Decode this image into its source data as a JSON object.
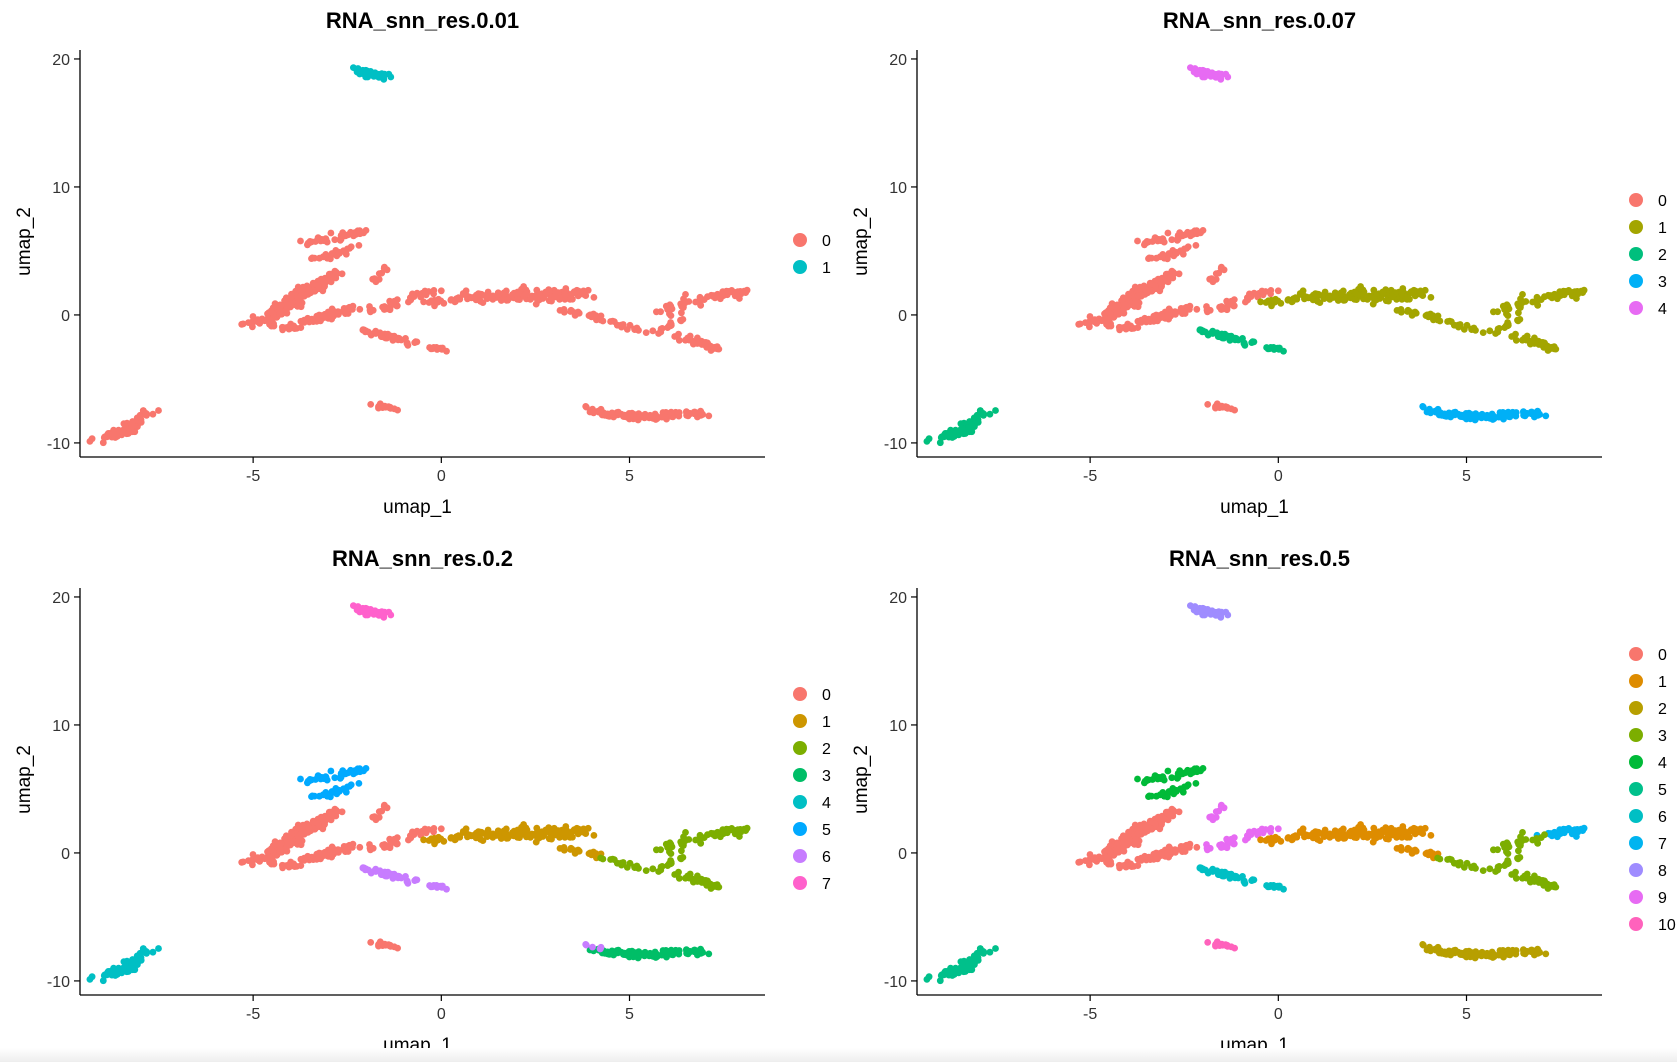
{
  "chart_data": [
    {
      "type": "scatter",
      "title": "RNA_snn_res.0.01",
      "xlabel": "umap_1",
      "ylabel": "umap_2",
      "xlim": [
        -9.6,
        8.6
      ],
      "ylim": [
        -11.1,
        20.7
      ],
      "xticks": [
        -5,
        0,
        5
      ],
      "yticks": [
        -10,
        0,
        10,
        20
      ],
      "legend_position": "right",
      "assignment": {
        "A1": "0",
        "A2": "0",
        "A3": "0",
        "B1": "0",
        "B2": "0",
        "C": "0",
        "D": "0",
        "E": "0",
        "G1": "0",
        "G2": "0",
        "H": "0",
        "I1": "0",
        "I2": "0",
        "I3": "0",
        "J1": "0",
        "J2": "0",
        "J3": "0",
        "K1": "0",
        "K2": "0",
        "L1": "0",
        "L2": "0",
        "M": "0",
        "N": "1",
        "O": "0"
      },
      "legend": [
        {
          "label": "0",
          "color": "#F8766D"
        },
        {
          "label": "1",
          "color": "#00BFC4"
        }
      ]
    },
    {
      "type": "scatter",
      "title": "RNA_snn_res.0.07",
      "xlabel": "umap_1",
      "ylabel": "umap_2",
      "xlim": [
        -9.6,
        8.6
      ],
      "ylim": [
        -11.1,
        20.7
      ],
      "xticks": [
        -5,
        0,
        5
      ],
      "yticks": [
        -10,
        0,
        10,
        20
      ],
      "legend_position": "right",
      "assignment": {
        "A1": "0",
        "A2": "0",
        "A3": "0",
        "B1": "0",
        "B2": "0",
        "C": "0",
        "D": "0",
        "E": "2",
        "G1": "1",
        "G2": "1",
        "H": "1",
        "I1": "1",
        "I2": "1",
        "I3": "1",
        "J1": "1",
        "J2": "1",
        "J3": "1",
        "K1": "3",
        "K2": "3",
        "L1": "2",
        "L2": "2",
        "M": "0",
        "N": "4",
        "O": "3"
      },
      "legend": [
        {
          "label": "0",
          "color": "#F8766D"
        },
        {
          "label": "1",
          "color": "#A3A500"
        },
        {
          "label": "2",
          "color": "#00BF7D"
        },
        {
          "label": "3",
          "color": "#00B0F6"
        },
        {
          "label": "4",
          "color": "#E76BF3"
        }
      ]
    },
    {
      "type": "scatter",
      "title": "RNA_snn_res.0.2",
      "xlabel": "umap_1",
      "ylabel": "umap_2",
      "xlim": [
        -9.6,
        8.6
      ],
      "ylim": [
        -11.1,
        20.7
      ],
      "xticks": [
        -5,
        0,
        5
      ],
      "yticks": [
        -10,
        0,
        10,
        20
      ],
      "legend_position": "right",
      "assignment": {
        "A1": "0",
        "A2": "0",
        "A3": "0",
        "B1": "5",
        "B2": "5",
        "C": "0",
        "D": "0",
        "E": "6",
        "G1": "1",
        "G2": "1",
        "H": "1",
        "I1": "1",
        "I2": "2",
        "I3": "2",
        "J1": "2",
        "J2": "2",
        "J3": "2",
        "K1": "3",
        "K2": "3",
        "L1": "4",
        "L2": "4",
        "M": "0",
        "N": "7",
        "O": "6"
      },
      "legend": [
        {
          "label": "0",
          "color": "#F8766D"
        },
        {
          "label": "1",
          "color": "#CD9600"
        },
        {
          "label": "2",
          "color": "#7CAE00"
        },
        {
          "label": "3",
          "color": "#00BE67"
        },
        {
          "label": "4",
          "color": "#00BFC4"
        },
        {
          "label": "5",
          "color": "#00A9FF"
        },
        {
          "label": "6",
          "color": "#C77CFF"
        },
        {
          "label": "7",
          "color": "#FF61CC"
        }
      ]
    },
    {
      "type": "scatter",
      "title": "RNA_snn_res.0.5",
      "xlabel": "umap_1",
      "ylabel": "umap_2",
      "xlim": [
        -9.6,
        8.6
      ],
      "ylim": [
        -11.1,
        20.7
      ],
      "xticks": [
        -5,
        0,
        5
      ],
      "yticks": [
        -10,
        0,
        10,
        20
      ],
      "legend_position": "right",
      "assignment": {
        "A1": "0",
        "A2": "0",
        "A3": "0",
        "B1": "4",
        "B2": "4",
        "C": "9",
        "D": "9",
        "E": "6",
        "G1": "1",
        "G2": "1",
        "H": "1",
        "I1": "1",
        "I2": "3",
        "I3": "3",
        "J1": "7",
        "J2": "3",
        "J3": "3",
        "K1": "2",
        "K2": "2",
        "L1": "5",
        "L2": "5",
        "M": "10",
        "N": "8",
        "O": "2"
      },
      "legend": [
        {
          "label": "0",
          "color": "#F8766D"
        },
        {
          "label": "1",
          "color": "#DE8C00"
        },
        {
          "label": "2",
          "color": "#B79F00"
        },
        {
          "label": "3",
          "color": "#7CAE00"
        },
        {
          "label": "4",
          "color": "#00BA38"
        },
        {
          "label": "5",
          "color": "#00C08B"
        },
        {
          "label": "6",
          "color": "#00BFC4"
        },
        {
          "label": "7",
          "color": "#00B4F0"
        },
        {
          "label": "8",
          "color": "#9F8CFF"
        },
        {
          "label": "9",
          "color": "#E76BF3"
        },
        {
          "label": "10",
          "color": "#FF62BC"
        }
      ]
    }
  ],
  "regions": {
    "A1": {
      "count": 130,
      "x": [
        -5.0,
        -3.0
      ],
      "y": [
        -0.8,
        2.8
      ],
      "spread": 0.35
    },
    "A2": {
      "count": 70,
      "x": [
        -4.2,
        -2.4
      ],
      "y": [
        -1.2,
        0.6
      ],
      "spread": 0.3
    },
    "A3": {
      "count": 40,
      "x": [
        -3.7,
        -2.7
      ],
      "y": [
        1.5,
        3.5
      ],
      "spread": 0.2
    },
    "B1": {
      "count": 45,
      "x": [
        -3.6,
        -1.9
      ],
      "y": [
        5.6,
        6.6
      ],
      "spread": 0.25
    },
    "B2": {
      "count": 25,
      "x": [
        -3.3,
        -2.2
      ],
      "y": [
        4.3,
        5.4
      ],
      "spread": 0.25
    },
    "C": {
      "count": 10,
      "x": [
        -1.8,
        -1.4
      ],
      "y": [
        2.6,
        4.0
      ],
      "spread": 0.15
    },
    "D": {
      "count": 35,
      "x": [
        -1.8,
        -0.3
      ],
      "y": [
        0.4,
        1.8
      ],
      "spread": 0.3
    },
    "E": {
      "count": 48,
      "x": [
        -2.1,
        0.1
      ],
      "y": [
        -1.2,
        -2.8
      ],
      "spread": 0.2
    },
    "G1": {
      "count": 55,
      "x": [
        -0.2,
        1.6
      ],
      "y": [
        1.0,
        1.6
      ],
      "spread": 0.35
    },
    "G2": {
      "count": 25,
      "x": [
        1.6,
        2.2
      ],
      "y": [
        1.2,
        1.8
      ],
      "spread": 0.3
    },
    "H": {
      "count": 90,
      "x": [
        2.2,
        3.8
      ],
      "y": [
        1.3,
        1.8
      ],
      "spread": 0.45
    },
    "I1": {
      "count": 24,
      "x": [
        3.0,
        4.2
      ],
      "y": [
        0.5,
        -0.2
      ],
      "spread": 0.15
    },
    "I2": {
      "count": 16,
      "x": [
        4.2,
        5.6
      ],
      "y": [
        -0.3,
        -1.5
      ],
      "spread": 0.15
    },
    "I3": {
      "count": 14,
      "x": [
        5.6,
        6.4
      ],
      "y": [
        -1.5,
        -0.3
      ],
      "spread": 0.15
    },
    "J1": {
      "count": 38,
      "x": [
        7.2,
        8.0
      ],
      "y": [
        1.4,
        1.8
      ],
      "spread": 0.3
    },
    "J2": {
      "count": 30,
      "x": [
        5.9,
        7.0
      ],
      "y": [
        0.1,
        1.5
      ],
      "spread": 0.3
    },
    "J3": {
      "count": 36,
      "x": [
        6.2,
        7.3
      ],
      "y": [
        -1.6,
        -2.6
      ],
      "spread": 0.25
    },
    "K1": {
      "count": 58,
      "x": [
        4.0,
        5.5
      ],
      "y": [
        -7.6,
        -8.0
      ],
      "spread": 0.25
    },
    "K2": {
      "count": 50,
      "x": [
        5.5,
        7.0
      ],
      "y": [
        -8.0,
        -7.6
      ],
      "spread": 0.25
    },
    "L1": {
      "count": 40,
      "x": [
        -9.0,
        -8.0
      ],
      "y": [
        -9.8,
        -8.6
      ],
      "spread": 0.3
    },
    "L2": {
      "count": 25,
      "x": [
        -8.2,
        -7.8
      ],
      "y": [
        -8.6,
        -7.5
      ],
      "spread": 0.25
    },
    "M": {
      "count": 18,
      "x": [
        -1.8,
        -1.2
      ],
      "y": [
        -7.1,
        -7.3
      ],
      "spread": 0.18
    },
    "N": {
      "count": 60,
      "x": [
        -2.3,
        -1.5
      ],
      "y": [
        19.1,
        18.6
      ],
      "spread": 0.25
    },
    "O": {
      "count": 6,
      "x": [
        3.8,
        4.4
      ],
      "y": [
        -7.2,
        -7.5
      ],
      "spread": 0.12
    }
  },
  "colors": {
    "axis": "#000000",
    "tick_text": "#333333",
    "background": "#ffffff"
  }
}
